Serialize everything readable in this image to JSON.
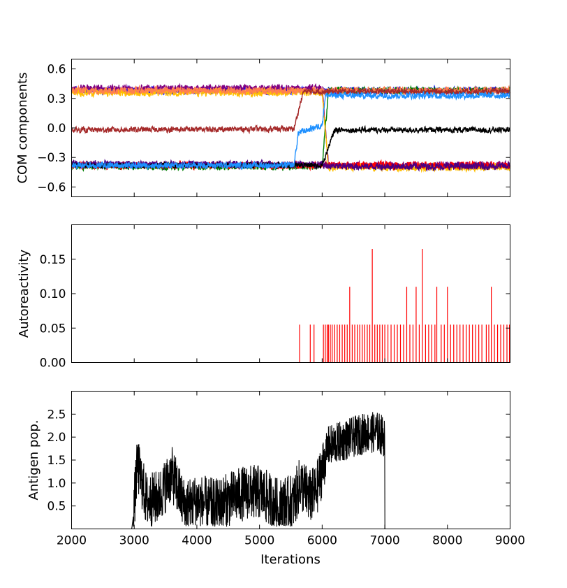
{
  "chart_data": [
    {
      "type": "line",
      "ylabel": "COM components",
      "xlim": [
        2000,
        9000
      ],
      "ylim": [
        -0.7,
        0.7
      ],
      "yticks": [
        0.6,
        0.3,
        0.0,
        -0.3,
        -0.6
      ],
      "ytick_labels": [
        "0.6",
        "0.3",
        "0.0",
        "−0.3",
        "−0.6"
      ],
      "series": [
        {
          "name": "blue",
          "color": "#0000ff",
          "segments": [
            [
              2000,
              0.38
            ],
            [
              9000,
              0.38
            ]
          ],
          "noise": 0.04
        },
        {
          "name": "purple",
          "color": "#800080",
          "segments": [
            [
              2000,
              0.4
            ],
            [
              6000,
              0.4
            ],
            [
              6100,
              -0.38
            ],
            [
              9000,
              -0.38
            ]
          ],
          "noise": 0.04
        },
        {
          "name": "green",
          "color": "#008000",
          "segments": [
            [
              2000,
              -0.39
            ],
            [
              6000,
              -0.39
            ],
            [
              6100,
              0.38
            ],
            [
              9000,
              0.38
            ]
          ],
          "noise": 0.04
        },
        {
          "name": "gold",
          "color": "#ffc000",
          "segments": [
            [
              2000,
              0.36
            ],
            [
              6000,
              0.36
            ],
            [
              6100,
              -0.4
            ],
            [
              9000,
              -0.4
            ]
          ],
          "noise": 0.04
        },
        {
          "name": "red",
          "color": "#ff0000",
          "segments": [
            [
              2000,
              -0.38
            ],
            [
              9000,
              -0.38
            ]
          ],
          "noise": 0.04
        },
        {
          "name": "indigo",
          "color": "#4b0082",
          "segments": [
            [
              2000,
              -0.37
            ],
            [
              6000,
              -0.37
            ],
            [
              6100,
              -0.39
            ],
            [
              9000,
              -0.39
            ]
          ],
          "noise": 0.04
        },
        {
          "name": "coral",
          "color": "#ff7f50",
          "segments": [
            [
              2000,
              0.38
            ],
            [
              9000,
              0.38
            ]
          ],
          "noise": 0.04
        },
        {
          "name": "brown",
          "color": "#a52a2a",
          "segments": [
            [
              2000,
              -0.02
            ],
            [
              5550,
              -0.01
            ],
            [
              5700,
              0.37
            ],
            [
              9000,
              0.37
            ]
          ],
          "noise": 0.03
        },
        {
          "name": "black",
          "color": "#000000",
          "segments": [
            [
              2000,
              -0.38
            ],
            [
              6000,
              -0.38
            ],
            [
              6200,
              -0.02
            ],
            [
              9000,
              -0.02
            ]
          ],
          "noise": 0.03
        },
        {
          "name": "dodgerblue",
          "color": "#1e90ff",
          "segments": [
            [
              2000,
              -0.38
            ],
            [
              5550,
              -0.38
            ],
            [
              5620,
              -0.05
            ],
            [
              6000,
              0.03
            ],
            [
              6050,
              0.33
            ],
            [
              9000,
              0.33
            ]
          ],
          "noise": 0.035
        }
      ]
    },
    {
      "type": "bar",
      "ylabel": "Autoreactivity",
      "xlim": [
        2000,
        9000
      ],
      "ylim": [
        0,
        0.2
      ],
      "yticks": [
        0.15,
        0.1,
        0.05,
        0.0
      ],
      "ytick_labels": [
        "0.15",
        "0.10",
        "0.05",
        "0.00"
      ],
      "color": "#ff0000",
      "x": [
        5640,
        5810,
        5870,
        6020,
        6050,
        6080,
        6100,
        6130,
        6160,
        6200,
        6240,
        6280,
        6320,
        6360,
        6400,
        6440,
        6480,
        6520,
        6560,
        6600,
        6640,
        6680,
        6720,
        6760,
        6800,
        6840,
        6880,
        6920,
        6960,
        7000,
        7050,
        7100,
        7150,
        7200,
        7250,
        7300,
        7350,
        7400,
        7450,
        7500,
        7550,
        7600,
        7650,
        7700,
        7750,
        7800,
        7830,
        7900,
        7950,
        8000,
        8050,
        8100,
        8150,
        8200,
        8250,
        8300,
        8350,
        8400,
        8450,
        8500,
        8550,
        8620,
        8660,
        8700,
        8750,
        8800,
        8850,
        8900,
        8950,
        8990
      ],
      "values": [
        0.055,
        0.055,
        0.055,
        0.055,
        0.055,
        0.055,
        0.055,
        0.055,
        0.055,
        0.055,
        0.055,
        0.055,
        0.055,
        0.055,
        0.055,
        0.11,
        0.055,
        0.055,
        0.055,
        0.055,
        0.055,
        0.055,
        0.055,
        0.055,
        0.165,
        0.055,
        0.055,
        0.055,
        0.055,
        0.055,
        0.055,
        0.055,
        0.055,
        0.055,
        0.055,
        0.055,
        0.11,
        0.055,
        0.055,
        0.11,
        0.055,
        0.165,
        0.055,
        0.055,
        0.055,
        0.055,
        0.11,
        0.055,
        0.055,
        0.11,
        0.055,
        0.055,
        0.055,
        0.055,
        0.055,
        0.055,
        0.055,
        0.055,
        0.055,
        0.055,
        0.055,
        0.055,
        0.055,
        0.11,
        0.055,
        0.055,
        0.055,
        0.055,
        0.055,
        0.055
      ]
    },
    {
      "type": "line",
      "ylabel": "Antigen pop.",
      "xlabel": "Iterations",
      "xlim": [
        2000,
        9000
      ],
      "ylim": [
        0,
        3.0
      ],
      "yticks": [
        2.5,
        2.0,
        1.5,
        1.0,
        0.5
      ],
      "ytick_labels": [
        "2.5",
        "2.0",
        "1.5",
        "1.0",
        "0.5"
      ],
      "xticks": [
        2000,
        3000,
        4000,
        5000,
        6000,
        7000,
        8000,
        9000
      ],
      "xtick_labels": [
        "2000",
        "3000",
        "4000",
        "5000",
        "6000",
        "7000",
        "8000",
        "9000"
      ],
      "color": "#000000",
      "envelope": {
        "x": [
          2000,
          2960,
          2980,
          3050,
          3200,
          3400,
          3600,
          3800,
          4000,
          4300,
          4600,
          4800,
          5000,
          5300,
          5550,
          5650,
          5800,
          5900,
          6000,
          6100,
          6300,
          6500,
          6700,
          6900,
          7000,
          7001,
          9000
        ],
        "y": [
          0,
          0,
          0.2,
          1.4,
          0.6,
          0.7,
          1.2,
          0.5,
          0.6,
          0.5,
          0.7,
          0.8,
          0.8,
          0.5,
          0.6,
          1.0,
          0.7,
          0.8,
          1.3,
          1.8,
          1.9,
          2.0,
          2.1,
          2.1,
          2.0,
          0,
          0
        ]
      }
    }
  ]
}
